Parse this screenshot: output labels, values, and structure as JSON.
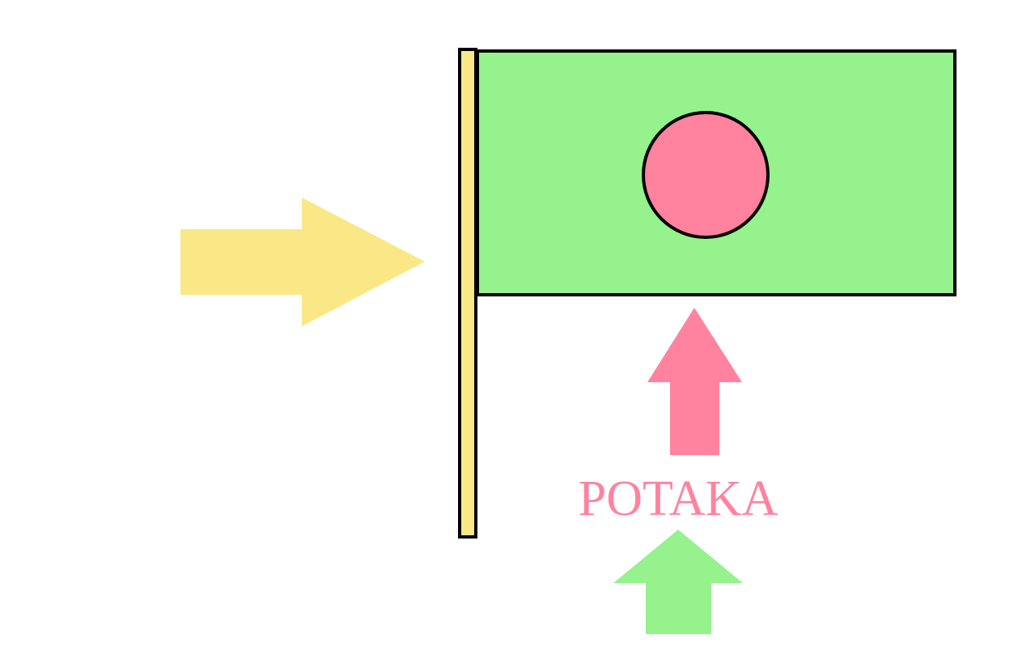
{
  "label": {
    "text": "POTAKA"
  },
  "colors": {
    "background": "#ffffff",
    "flag_field": "#95f28c",
    "flag_disc": "#ff839f",
    "pole": "#fae886",
    "outline": "#000000",
    "arrow_yellow": "#fae886",
    "arrow_pink": "#ff839f",
    "arrow_green": "#95f28c",
    "label_text": "#ff839f"
  }
}
